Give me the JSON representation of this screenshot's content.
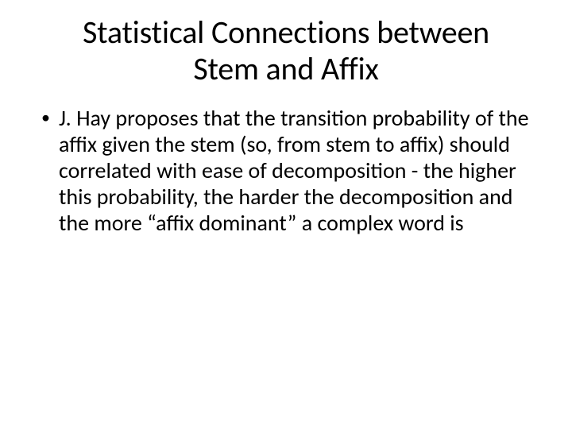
{
  "slide": {
    "title": "Statistical Connections between Stem and Affix",
    "title_fontsize": 40,
    "title_color": "#000000",
    "title_align": "center",
    "body_fontsize": 28,
    "body_color": "#000000",
    "background_color": "#ffffff",
    "bullets": [
      {
        "marker": "•",
        "text": "J. Hay proposes that the transition probability of the affix given the stem (so, from stem to affix) should correlated with ease of decomposition - the higher this probability, the harder the decomposition and the more “affix dominant” a complex word is"
      }
    ]
  }
}
